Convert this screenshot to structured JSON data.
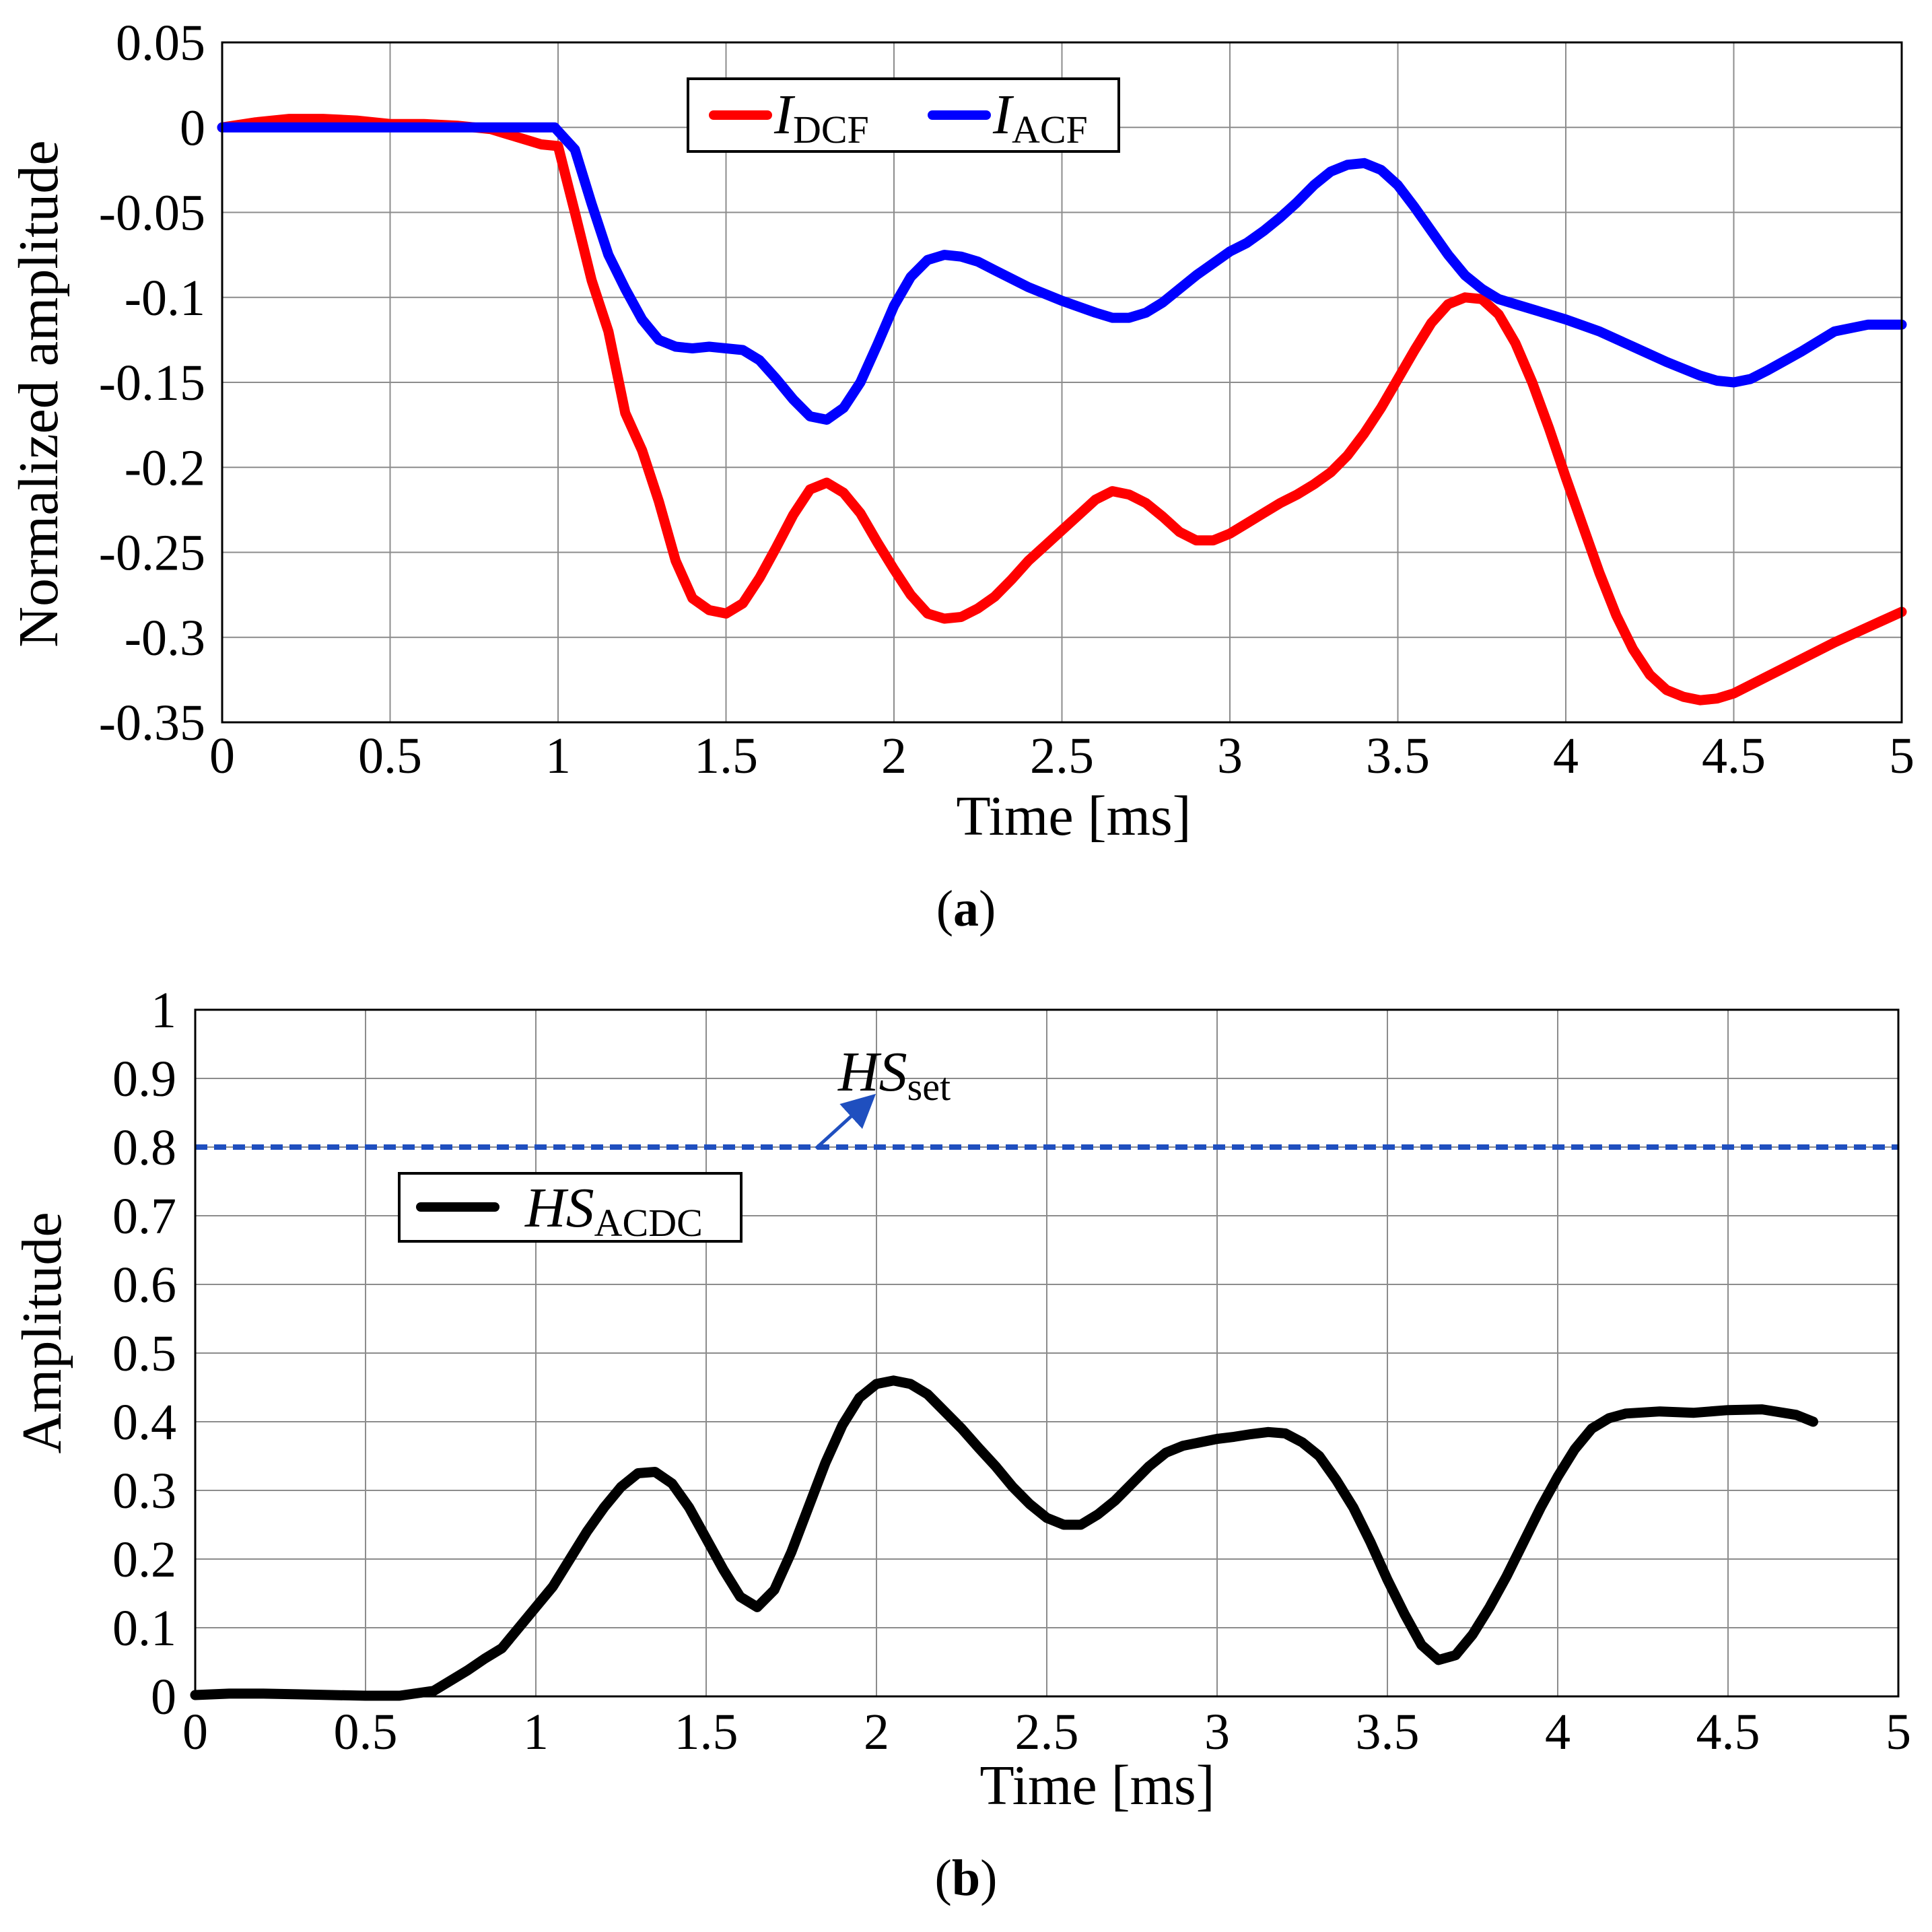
{
  "chart_data": [
    {
      "id": "a",
      "type": "line",
      "caption_letter": "a",
      "xlabel": "Time [ms]",
      "ylabel": "Normalized amplitude",
      "xlim": [
        0,
        5
      ],
      "ylim": [
        -0.35,
        0.05
      ],
      "xticks": [
        "0",
        "0.5",
        "1",
        "1.5",
        "2",
        "2.5",
        "3",
        "3.5",
        "4",
        "4.5",
        "5"
      ],
      "yticks": [
        "0.05",
        "0",
        "-0.05",
        "-0.1",
        "-0.15",
        "-0.2",
        "-0.25",
        "-0.3",
        "-0.35"
      ],
      "grid": true,
      "legend_position": "top-center",
      "series": [
        {
          "name_main": "I",
          "name_sub": "DCF",
          "color": "#ff0000",
          "x": [
            0,
            0.1,
            0.2,
            0.3,
            0.4,
            0.5,
            0.6,
            0.7,
            0.8,
            0.85,
            0.9,
            0.95,
            1.0,
            1.05,
            1.1,
            1.15,
            1.2,
            1.25,
            1.3,
            1.35,
            1.4,
            1.45,
            1.5,
            1.55,
            1.6,
            1.65,
            1.7,
            1.75,
            1.8,
            1.85,
            1.9,
            1.95,
            2.0,
            2.05,
            2.1,
            2.15,
            2.2,
            2.25,
            2.3,
            2.35,
            2.4,
            2.45,
            2.5,
            2.55,
            2.6,
            2.65,
            2.7,
            2.75,
            2.8,
            2.85,
            2.9,
            2.95,
            3.0,
            3.05,
            3.1,
            3.15,
            3.2,
            3.25,
            3.3,
            3.35,
            3.4,
            3.45,
            3.5,
            3.55,
            3.6,
            3.65,
            3.7,
            3.75,
            3.8,
            3.85,
            3.9,
            3.95,
            4.0,
            4.05,
            4.1,
            4.15,
            4.2,
            4.25,
            4.3,
            4.35,
            4.4,
            4.45,
            4.5,
            4.6,
            4.7,
            4.8,
            4.9,
            5.0
          ],
          "values": [
            0,
            0.003,
            0.005,
            0.005,
            0.004,
            0.002,
            0.002,
            0.001,
            -0.001,
            -0.004,
            -0.007,
            -0.01,
            -0.011,
            -0.05,
            -0.09,
            -0.12,
            -0.168,
            -0.19,
            -0.22,
            -0.255,
            -0.277,
            -0.284,
            -0.286,
            -0.28,
            -0.265,
            -0.247,
            -0.228,
            -0.213,
            -0.209,
            -0.215,
            -0.227,
            -0.244,
            -0.26,
            -0.275,
            -0.286,
            -0.289,
            -0.288,
            -0.283,
            -0.276,
            -0.266,
            -0.255,
            -0.246,
            -0.237,
            -0.228,
            -0.219,
            -0.214,
            -0.216,
            -0.221,
            -0.229,
            -0.238,
            -0.243,
            -0.243,
            -0.239,
            -0.233,
            -0.227,
            -0.221,
            -0.216,
            -0.21,
            -0.203,
            -0.193,
            -0.18,
            -0.165,
            -0.148,
            -0.131,
            -0.115,
            -0.104,
            -0.1,
            -0.101,
            -0.11,
            -0.127,
            -0.15,
            -0.177,
            -0.206,
            -0.234,
            -0.262,
            -0.287,
            -0.307,
            -0.322,
            -0.331,
            -0.335,
            -0.337,
            -0.336,
            -0.333,
            -0.323,
            -0.313,
            -0.303,
            -0.294,
            -0.285
          ]
        },
        {
          "name_main": "I",
          "name_sub": "ACF",
          "color": "#0000ff",
          "x": [
            0,
            0.5,
            0.99,
            1.05,
            1.1,
            1.15,
            1.2,
            1.25,
            1.3,
            1.35,
            1.4,
            1.45,
            1.5,
            1.55,
            1.6,
            1.65,
            1.7,
            1.75,
            1.8,
            1.85,
            1.9,
            1.95,
            2.0,
            2.05,
            2.1,
            2.15,
            2.2,
            2.25,
            2.3,
            2.4,
            2.5,
            2.6,
            2.65,
            2.7,
            2.75,
            2.8,
            2.85,
            2.9,
            2.95,
            3.0,
            3.05,
            3.1,
            3.15,
            3.2,
            3.25,
            3.3,
            3.35,
            3.4,
            3.45,
            3.5,
            3.55,
            3.6,
            3.65,
            3.7,
            3.75,
            3.8,
            3.85,
            3.9,
            4.0,
            4.1,
            4.2,
            4.3,
            4.4,
            4.45,
            4.5,
            4.55,
            4.6,
            4.7,
            4.8,
            4.9,
            5.0
          ],
          "values": [
            0,
            0,
            0,
            -0.013,
            -0.045,
            -0.075,
            -0.095,
            -0.113,
            -0.125,
            -0.129,
            -0.13,
            -0.129,
            -0.13,
            -0.131,
            -0.137,
            -0.148,
            -0.16,
            -0.17,
            -0.172,
            -0.165,
            -0.15,
            -0.128,
            -0.105,
            -0.088,
            -0.078,
            -0.075,
            -0.076,
            -0.079,
            -0.084,
            -0.094,
            -0.102,
            -0.109,
            -0.112,
            -0.112,
            -0.109,
            -0.103,
            -0.095,
            -0.087,
            -0.08,
            -0.073,
            -0.068,
            -0.061,
            -0.053,
            -0.044,
            -0.034,
            -0.026,
            -0.022,
            -0.021,
            -0.025,
            -0.034,
            -0.047,
            -0.061,
            -0.075,
            -0.087,
            -0.095,
            -0.101,
            -0.104,
            -0.107,
            -0.113,
            -0.12,
            -0.129,
            -0.138,
            -0.146,
            -0.149,
            -0.15,
            -0.148,
            -0.143,
            -0.132,
            -0.12,
            -0.116,
            -0.116
          ]
        }
      ]
    },
    {
      "id": "b",
      "type": "line",
      "caption_letter": "b",
      "xlabel": "Time [ms]",
      "ylabel": "Amplitude",
      "xlim": [
        0,
        5
      ],
      "ylim": [
        0,
        1
      ],
      "xticks": [
        "0",
        "0.5",
        "1",
        "1.5",
        "2",
        "2.5",
        "3",
        "3.5",
        "4",
        "4.5",
        "5"
      ],
      "yticks": [
        "1",
        "0.9",
        "0.8",
        "0.7",
        "0.6",
        "0.5",
        "0.4",
        "0.3",
        "0.2",
        "0.1",
        "0"
      ],
      "grid": true,
      "legend_position": "upper-left",
      "series": [
        {
          "name_main": "HS",
          "name_sub": "ACDC",
          "color": "#000000",
          "x": [
            0,
            0.1,
            0.2,
            0.3,
            0.4,
            0.5,
            0.6,
            0.7,
            0.8,
            0.85,
            0.9,
            0.95,
            1.0,
            1.05,
            1.1,
            1.15,
            1.2,
            1.25,
            1.3,
            1.35,
            1.4,
            1.45,
            1.5,
            1.55,
            1.6,
            1.65,
            1.7,
            1.75,
            1.8,
            1.85,
            1.9,
            1.95,
            2.0,
            2.05,
            2.1,
            2.15,
            2.2,
            2.25,
            2.3,
            2.35,
            2.4,
            2.45,
            2.5,
            2.55,
            2.6,
            2.65,
            2.7,
            2.75,
            2.8,
            2.85,
            2.9,
            3.0,
            3.05,
            3.1,
            3.15,
            3.2,
            3.25,
            3.3,
            3.35,
            3.4,
            3.45,
            3.5,
            3.55,
            3.6,
            3.65,
            3.7,
            3.75,
            3.8,
            3.85,
            3.9,
            3.95,
            4.0,
            4.05,
            4.1,
            4.15,
            4.2,
            4.3,
            4.4,
            4.5,
            4.6,
            4.7,
            4.75
          ],
          "values": [
            0.002,
            0.004,
            0.004,
            0.003,
            0.002,
            0.001,
            0.001,
            0.008,
            0.038,
            0.055,
            0.07,
            0.1,
            0.13,
            0.16,
            0.2,
            0.24,
            0.275,
            0.305,
            0.325,
            0.327,
            0.31,
            0.275,
            0.23,
            0.185,
            0.145,
            0.13,
            0.155,
            0.21,
            0.275,
            0.34,
            0.395,
            0.435,
            0.455,
            0.46,
            0.455,
            0.44,
            0.415,
            0.39,
            0.362,
            0.335,
            0.305,
            0.28,
            0.26,
            0.25,
            0.25,
            0.265,
            0.285,
            0.31,
            0.335,
            0.355,
            0.365,
            0.375,
            0.378,
            0.382,
            0.385,
            0.383,
            0.37,
            0.35,
            0.315,
            0.275,
            0.225,
            0.17,
            0.12,
            0.075,
            0.053,
            0.06,
            0.09,
            0.13,
            0.175,
            0.225,
            0.275,
            0.32,
            0.36,
            0.39,
            0.405,
            0.412,
            0.415,
            0.413,
            0.417,
            0.418,
            0.41,
            0.4
          ]
        }
      ],
      "threshold": {
        "name_main": "HS",
        "name_sub": "set",
        "value": 0.8,
        "color": "#1f4fbf",
        "style": "dashed"
      }
    }
  ]
}
